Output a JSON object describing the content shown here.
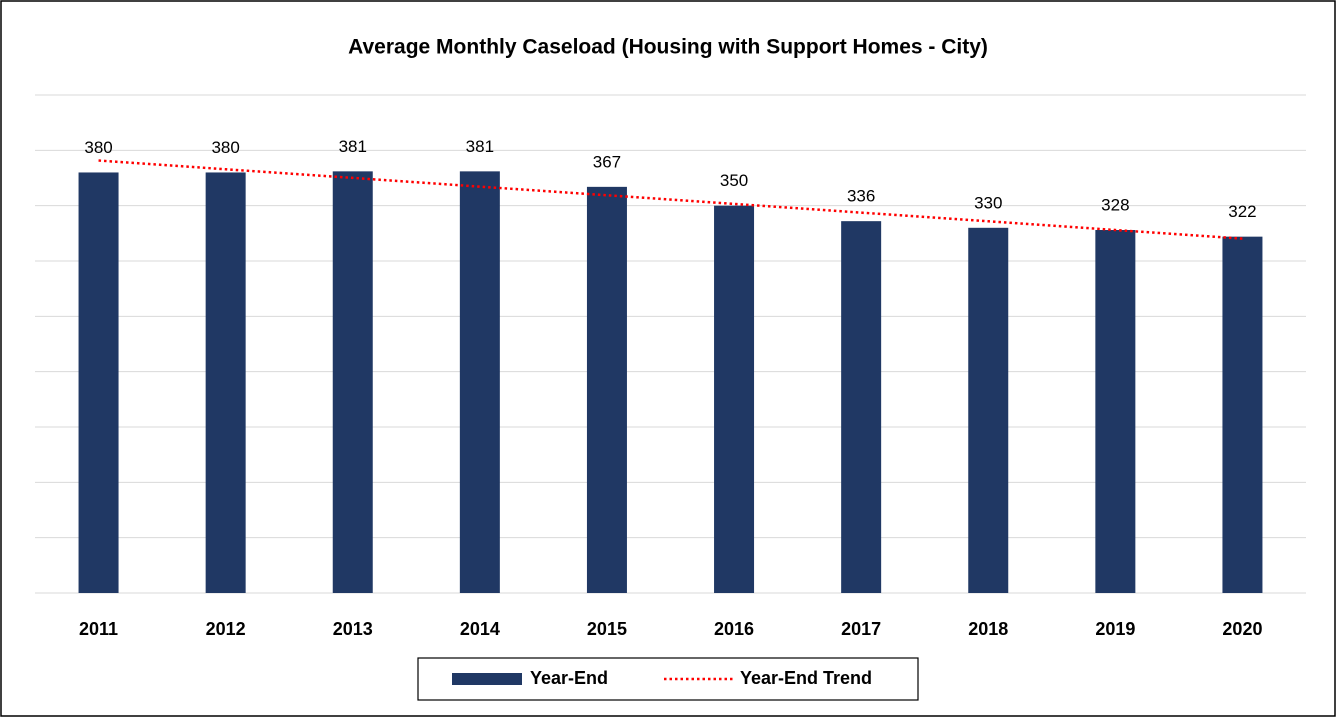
{
  "chart_data": {
    "type": "bar",
    "title": "Average Monthly Caseload (Housing with Support Homes - City)",
    "categories": [
      "2011",
      "2012",
      "2013",
      "2014",
      "2015",
      "2016",
      "2017",
      "2018",
      "2019",
      "2020"
    ],
    "series": [
      {
        "name": "Year-End",
        "color": "#203864",
        "values": [
          380,
          380,
          381,
          381,
          367,
          350,
          336,
          330,
          328,
          322
        ]
      },
      {
        "name": "Year-End Trend",
        "type": "line",
        "color": "#ff0000",
        "values": [
          390.8,
          382.9,
          375.1,
          367.2,
          359.4,
          351.6,
          343.7,
          335.9,
          328.0,
          320.2
        ]
      }
    ],
    "ylim": [
      0,
      450
    ],
    "yticks": [
      0,
      50,
      100,
      150,
      200,
      250,
      300,
      350,
      400,
      450
    ],
    "grid": true,
    "legend": "bottom"
  }
}
